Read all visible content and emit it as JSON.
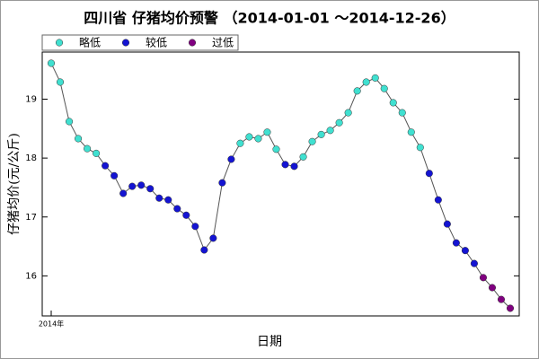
{
  "chart_data": {
    "type": "line",
    "title": "四川省 仔猪均价预警 （2014-01-01 ～2014-12-26）",
    "x_label": "日期",
    "y_label": "仔猪均价(元/公斤)",
    "categories": [
      "2014年",
      null,
      null,
      null,
      null,
      null,
      null,
      null,
      null,
      null,
      null,
      null,
      null,
      null,
      null,
      null,
      null,
      null,
      null,
      null,
      null,
      null,
      null,
      null,
      null,
      null,
      null,
      null,
      null,
      null,
      null,
      null,
      null,
      null,
      null,
      null,
      null,
      null,
      null,
      null,
      null,
      null,
      null,
      null,
      null,
      null,
      null,
      null,
      null,
      null,
      null,
      null
    ],
    "series": [
      {
        "name": "略低",
        "color": "#40e0d0",
        "values": [
          19.61,
          19.29,
          18.62,
          18.33,
          18.16,
          18.08,
          null,
          null,
          null,
          null,
          null,
          null,
          null,
          null,
          null,
          null,
          null,
          null,
          null,
          null,
          null,
          18.25,
          18.36,
          18.33,
          18.44,
          18.15,
          null,
          null,
          18.02,
          18.28,
          18.4,
          18.47,
          18.6,
          18.77,
          19.14,
          19.29,
          19.36,
          19.18,
          18.94,
          18.77,
          18.44,
          18.18,
          null,
          null,
          null,
          null,
          null,
          null,
          null,
          null,
          null,
          null
        ]
      },
      {
        "name": "较低",
        "color": "#1414d2",
        "values": [
          null,
          null,
          null,
          null,
          null,
          null,
          17.87,
          17.7,
          17.4,
          17.52,
          17.54,
          17.48,
          17.32,
          17.29,
          17.14,
          17.03,
          16.84,
          16.44,
          16.64,
          17.58,
          17.98,
          null,
          null,
          null,
          null,
          null,
          17.89,
          17.86,
          null,
          null,
          null,
          null,
          null,
          null,
          null,
          null,
          null,
          null,
          null,
          null,
          null,
          null,
          17.74,
          17.29,
          16.88,
          16.56,
          16.43,
          16.21,
          null,
          null,
          null,
          null
        ]
      },
      {
        "name": "过低",
        "color": "#800080",
        "values": [
          null,
          null,
          null,
          null,
          null,
          null,
          null,
          null,
          null,
          null,
          null,
          null,
          null,
          null,
          null,
          null,
          null,
          null,
          null,
          null,
          null,
          null,
          null,
          null,
          null,
          null,
          null,
          null,
          null,
          null,
          null,
          null,
          null,
          null,
          null,
          null,
          null,
          null,
          null,
          null,
          null,
          null,
          null,
          null,
          null,
          null,
          null,
          null,
          15.97,
          15.8,
          15.6,
          15.45
        ]
      }
    ],
    "ylim": [
      15.32,
      19.8
    ],
    "yticks": [
      16,
      17,
      18,
      19
    ],
    "line_color": "#555555"
  }
}
